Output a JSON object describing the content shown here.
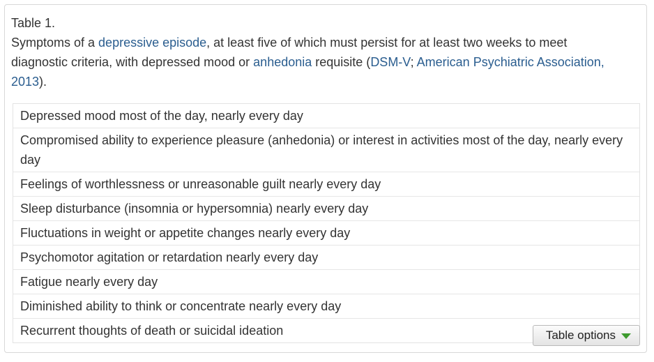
{
  "caption": {
    "label": "Table 1.",
    "text_1": "Symptoms of a ",
    "link_depressive_episode": "depressive episode",
    "text_2": ", at least five of which must persist for at least two weeks to meet diagnostic criteria, with depressed mood or ",
    "link_anhedonia": "anhedonia",
    "text_3": " requisite (",
    "link_dsm": "DSM-V",
    "text_4": "; ",
    "link_apa": "American Psychiatric Association, 2013",
    "text_5": ")."
  },
  "table": {
    "rows": [
      "Depressed mood most of the day, nearly every day",
      "Compromised ability to experience pleasure (anhedonia) or interest in activities most of the day, nearly every day",
      "Feelings of worthlessness or unreasonable guilt nearly every day",
      "Sleep disturbance (insomnia or hypersomnia) nearly every day",
      "Fluctuations in weight or appetite changes nearly every day",
      "Psychomotor agitation or retardation nearly every day",
      "Fatigue nearly every day",
      "Diminished ability to think or concentrate nearly every day",
      "Recurrent thoughts of death or suicidal ideation"
    ]
  },
  "options_button": {
    "label": "Table options",
    "icon": "caret-down-icon",
    "icon_color": "#3d9a2e"
  },
  "colors": {
    "link": "#2a5d8f",
    "text": "#333333"
  }
}
